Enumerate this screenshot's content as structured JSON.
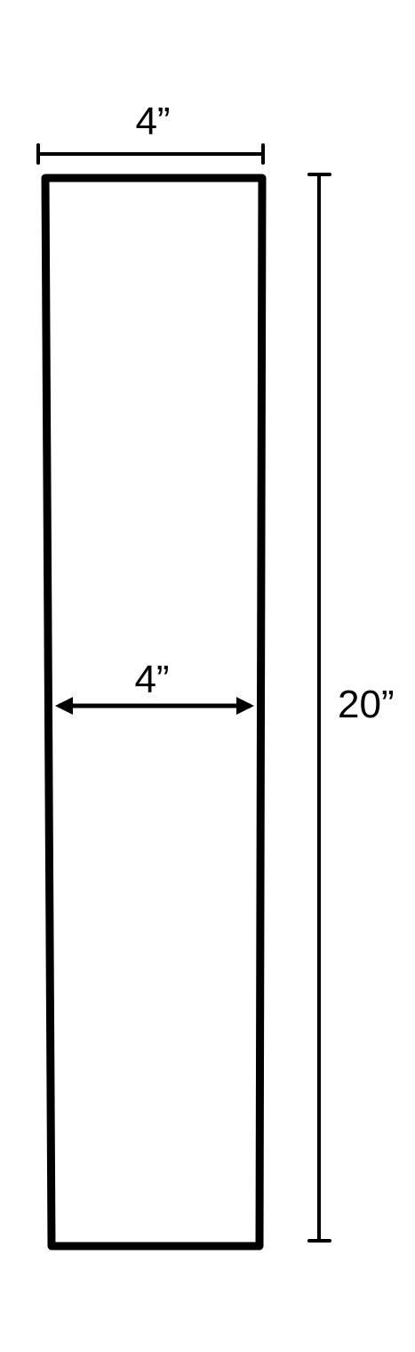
{
  "diagram": {
    "top_width_label": "4”",
    "inner_width_label": "4”",
    "height_label": "20”",
    "colors": {
      "stroke": "#000000",
      "background": "#ffffff"
    }
  }
}
